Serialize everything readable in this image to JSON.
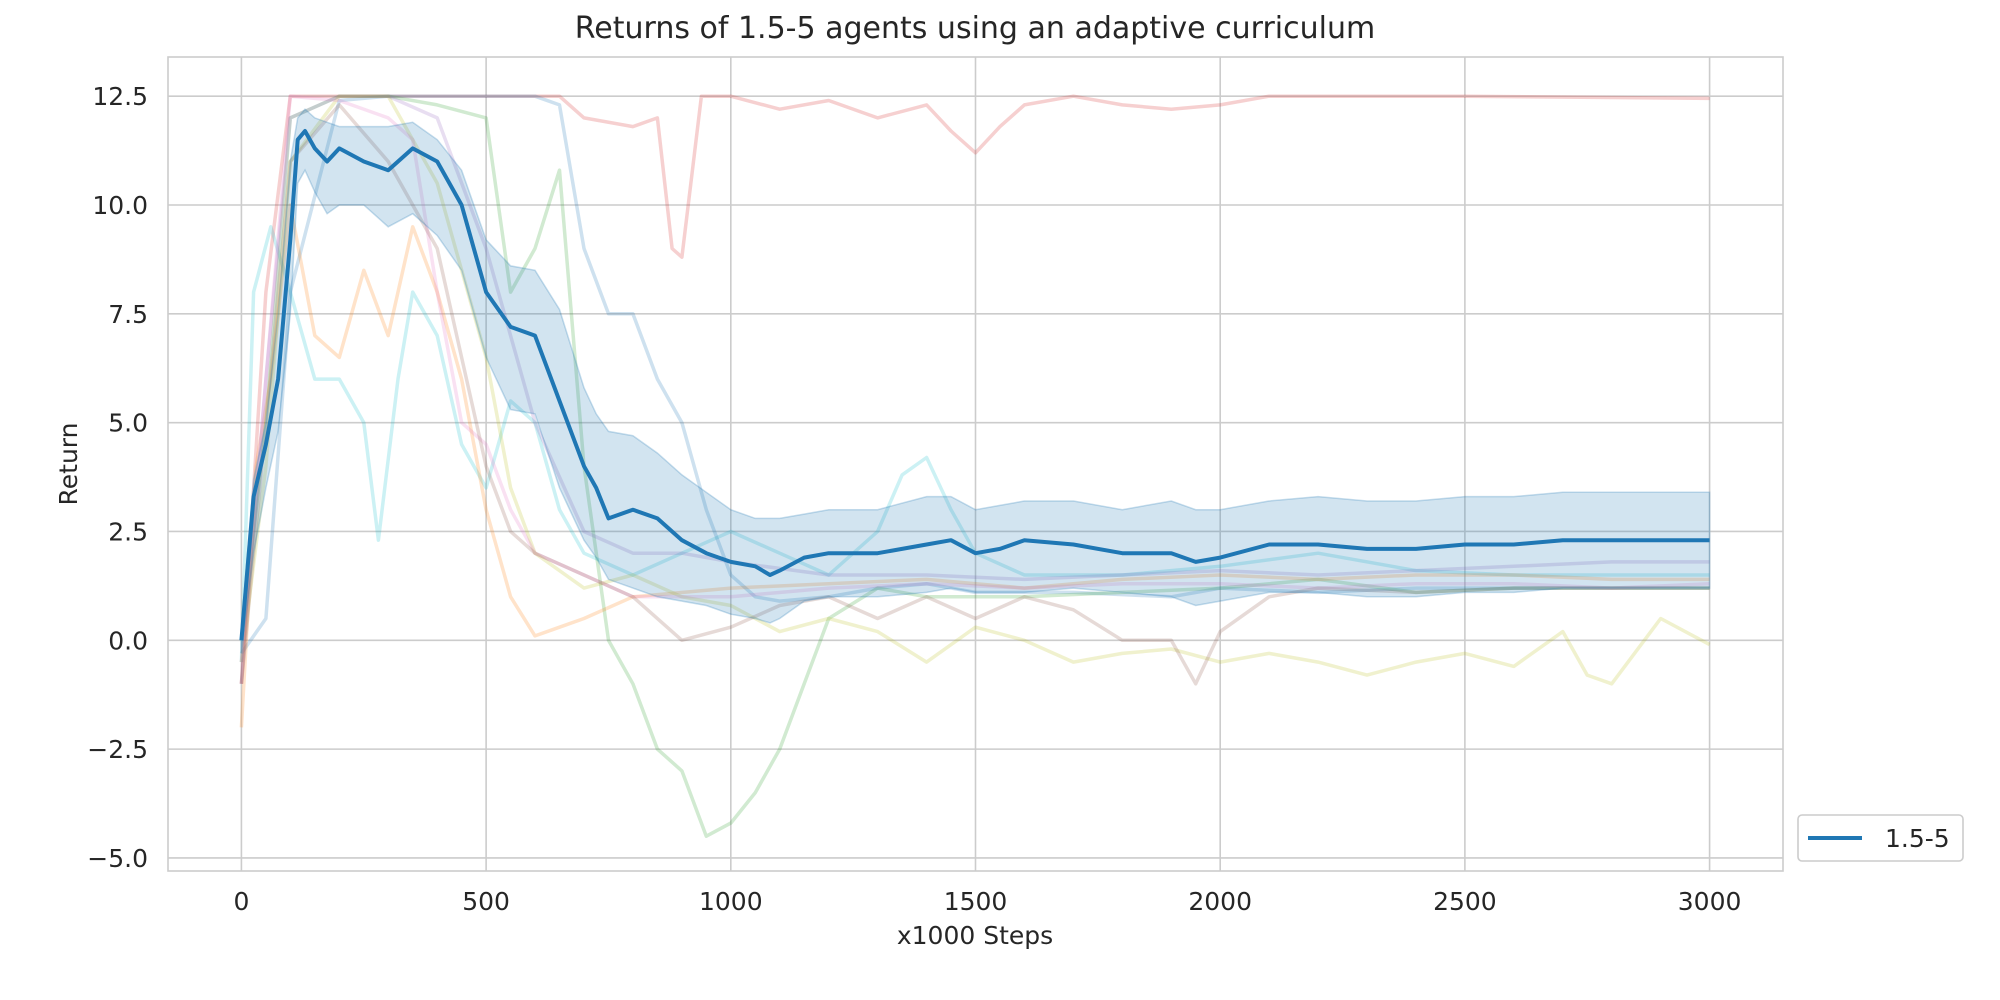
{
  "chart_data": {
    "type": "line",
    "title": "Returns of 1.5-5 agents using an adaptive curriculum",
    "xlabel": "x1000 Steps",
    "ylabel": "Return",
    "xlim": [
      -150,
      3150
    ],
    "ylim": [
      -5.3,
      13.4
    ],
    "xticks": [
      0,
      500,
      1000,
      1500,
      2000,
      2500,
      3000
    ],
    "xtick_labels": [
      "0",
      "500",
      "1000",
      "1500",
      "2000",
      "2500",
      "3000"
    ],
    "yticks": [
      -5.0,
      -2.5,
      0.0,
      2.5,
      5.0,
      7.5,
      10.0,
      12.5
    ],
    "ytick_labels": [
      "−5.0",
      "−2.5",
      "0.0",
      "2.5",
      "5.0",
      "7.5",
      "10.0",
      "12.5"
    ],
    "grid": true,
    "legend": {
      "placement": "outside-right-bottom",
      "entries": [
        "1.5-5"
      ]
    },
    "mean_color": "#1f77b4",
    "band_color": "#1f77b4",
    "series": [
      {
        "name": "1.5-5",
        "color": "#1f77b4",
        "x": [
          0,
          25,
          50,
          75,
          100,
          115,
          130,
          150,
          175,
          200,
          250,
          300,
          350,
          400,
          450,
          500,
          550,
          600,
          650,
          700,
          725,
          750,
          800,
          850,
          900,
          950,
          1000,
          1050,
          1080,
          1100,
          1150,
          1200,
          1300,
          1400,
          1450,
          1500,
          1550,
          1600,
          1700,
          1800,
          1900,
          1950,
          2000,
          2100,
          2200,
          2300,
          2400,
          2500,
          2600,
          2700,
          2800,
          2900,
          3000
        ],
        "y": [
          0.0,
          3.3,
          4.5,
          6.0,
          9.2,
          11.5,
          11.7,
          11.3,
          11.0,
          11.3,
          11.0,
          10.8,
          11.3,
          11.0,
          10.0,
          8.0,
          7.2,
          7.0,
          5.5,
          4.0,
          3.5,
          2.8,
          3.0,
          2.8,
          2.3,
          2.0,
          1.8,
          1.7,
          1.5,
          1.6,
          1.9,
          2.0,
          2.0,
          2.2,
          2.3,
          2.0,
          2.1,
          2.3,
          2.2,
          2.0,
          2.0,
          1.8,
          1.9,
          2.2,
          2.2,
          2.1,
          2.1,
          2.2,
          2.2,
          2.3,
          2.3,
          2.3,
          2.3
        ],
        "upper": [
          0.3,
          3.7,
          5.0,
          7.5,
          11.0,
          12.0,
          12.2,
          12.0,
          11.9,
          11.8,
          11.8,
          11.8,
          11.9,
          11.5,
          10.8,
          9.2,
          8.6,
          8.5,
          7.6,
          5.8,
          5.2,
          4.8,
          4.7,
          4.3,
          3.8,
          3.4,
          3.0,
          2.8,
          2.8,
          2.8,
          2.9,
          3.0,
          3.0,
          3.3,
          3.3,
          3.0,
          3.1,
          3.2,
          3.2,
          3.0,
          3.2,
          3.0,
          3.0,
          3.2,
          3.3,
          3.2,
          3.2,
          3.3,
          3.3,
          3.4,
          3.4,
          3.4,
          3.4
        ],
        "lower": [
          -0.3,
          2.0,
          3.5,
          4.8,
          7.5,
          10.5,
          10.8,
          10.3,
          9.8,
          10.0,
          10.0,
          9.5,
          9.8,
          9.3,
          8.5,
          6.5,
          5.3,
          5.2,
          3.5,
          2.3,
          1.9,
          1.4,
          1.2,
          1.0,
          0.9,
          0.8,
          0.6,
          0.5,
          0.4,
          0.5,
          0.9,
          1.0,
          1.0,
          1.1,
          1.2,
          1.1,
          1.1,
          1.1,
          1.2,
          1.1,
          1.0,
          0.8,
          0.9,
          1.1,
          1.1,
          1.0,
          1.0,
          1.1,
          1.1,
          1.2,
          1.2,
          1.2,
          1.2
        ]
      }
    ],
    "individual_runs": [
      {
        "color": "#d62728",
        "x": [
          0,
          50,
          100,
          300,
          600,
          650,
          700,
          800,
          850,
          880,
          900,
          940,
          1000,
          1100,
          1200,
          1300,
          1400,
          1450,
          1500,
          1550,
          1600,
          1700,
          1800,
          1900,
          2000,
          2100,
          2500,
          3000
        ],
        "y": [
          -1.0,
          8.0,
          12.5,
          12.5,
          12.5,
          12.5,
          12.0,
          11.8,
          12.0,
          9.0,
          8.8,
          12.5,
          12.5,
          12.2,
          12.4,
          12.0,
          12.3,
          11.7,
          11.2,
          11.8,
          12.3,
          12.5,
          12.3,
          12.2,
          12.3,
          12.5,
          12.5,
          12.45
        ]
      },
      {
        "color": "#1f77b4",
        "x": [
          0,
          50,
          100,
          200,
          300,
          400,
          500,
          600,
          650,
          700,
          750,
          800,
          850,
          900,
          950,
          1000,
          1050,
          1100,
          1200,
          1300,
          1400,
          1500,
          1700,
          1900,
          2000,
          2200,
          2400,
          2600,
          2800,
          3000
        ],
        "y": [
          -0.3,
          0.5,
          8.0,
          12.4,
          12.5,
          12.5,
          12.5,
          12.5,
          12.3,
          9.0,
          7.5,
          7.5,
          6.0,
          5.0,
          3.0,
          1.5,
          1.0,
          0.9,
          1.0,
          1.2,
          1.3,
          1.1,
          1.1,
          1.0,
          1.2,
          1.1,
          1.2,
          1.2,
          1.2,
          1.2
        ]
      },
      {
        "color": "#17becf",
        "x": [
          0,
          25,
          60,
          100,
          150,
          200,
          250,
          280,
          320,
          350,
          400,
          450,
          500,
          550,
          600,
          650,
          700,
          800,
          900,
          1000,
          1100,
          1200,
          1300,
          1350,
          1400,
          1450,
          1500,
          1600,
          1800,
          2000,
          2200,
          2400,
          2600,
          2800,
          3000
        ],
        "y": [
          -0.5,
          8.0,
          9.5,
          8.0,
          6.0,
          6.0,
          5.0,
          2.3,
          6.0,
          8.0,
          7.0,
          4.5,
          3.5,
          5.5,
          5.0,
          3.0,
          2.0,
          1.5,
          2.0,
          2.5,
          2.0,
          1.5,
          2.5,
          3.8,
          4.2,
          3.0,
          2.0,
          1.5,
          1.5,
          1.7,
          2.0,
          1.6,
          1.5,
          1.5,
          1.5
        ]
      },
      {
        "color": "#2ca02c",
        "x": [
          0,
          50,
          100,
          200,
          300,
          400,
          500,
          550,
          600,
          650,
          700,
          750,
          800,
          850,
          900,
          950,
          1000,
          1050,
          1100,
          1150,
          1200,
          1300,
          1400,
          1600,
          1800,
          2000,
          2200,
          2400,
          2600,
          2800,
          3000
        ],
        "y": [
          0.0,
          5.0,
          12.0,
          12.5,
          12.5,
          12.3,
          12.0,
          8.0,
          9.0,
          10.8,
          4.0,
          0.0,
          -1.0,
          -2.5,
          -3.0,
          -4.5,
          -4.2,
          -3.5,
          -2.5,
          -1.0,
          0.5,
          1.2,
          1.0,
          1.0,
          1.1,
          1.2,
          1.4,
          1.1,
          1.2,
          1.2,
          1.2
        ]
      },
      {
        "color": "#ff7f0e",
        "x": [
          0,
          30,
          60,
          100,
          150,
          200,
          250,
          300,
          350,
          400,
          450,
          500,
          550,
          600,
          650,
          700,
          800,
          1000,
          1200,
          1400,
          1600,
          1800,
          2000,
          2200,
          2400,
          2600,
          2800,
          3000
        ],
        "y": [
          -2.0,
          4.0,
          6.0,
          10.0,
          7.0,
          6.5,
          8.5,
          7.0,
          9.5,
          8.0,
          6.0,
          3.0,
          1.0,
          0.1,
          0.3,
          0.5,
          1.0,
          1.2,
          1.3,
          1.4,
          1.2,
          1.4,
          1.5,
          1.4,
          1.5,
          1.5,
          1.4,
          1.4
        ]
      },
      {
        "color": "#bcbd22",
        "x": [
          0,
          50,
          100,
          200,
          300,
          400,
          500,
          550,
          600,
          700,
          800,
          900,
          1000,
          1100,
          1200,
          1300,
          1400,
          1500,
          1600,
          1700,
          1800,
          1900,
          2000,
          2100,
          2200,
          2300,
          2400,
          2500,
          2600,
          2700,
          2750,
          2800,
          2900,
          3000
        ],
        "y": [
          -0.5,
          4.0,
          11.0,
          12.5,
          12.5,
          10.5,
          6.5,
          3.5,
          2.0,
          1.2,
          1.5,
          1.0,
          0.8,
          0.2,
          0.5,
          0.2,
          -0.5,
          0.3,
          0.0,
          -0.5,
          -0.3,
          -0.2,
          -0.5,
          -0.3,
          -0.5,
          -0.8,
          -0.5,
          -0.3,
          -0.6,
          0.2,
          -0.8,
          -1.0,
          0.5,
          -0.1
        ]
      },
      {
        "color": "#e377c2",
        "x": [
          0,
          50,
          100,
          200,
          300,
          350,
          400,
          450,
          500,
          550,
          600,
          700,
          800,
          1000,
          1200,
          1400,
          1600,
          1800,
          2000,
          2200,
          2400,
          2600,
          2800,
          3000
        ],
        "y": [
          -0.5,
          6.0,
          12.5,
          12.4,
          12.0,
          11.5,
          8.0,
          5.0,
          4.5,
          3.0,
          2.0,
          1.5,
          1.0,
          1.0,
          1.2,
          1.3,
          1.2,
          1.3,
          1.3,
          1.2,
          1.3,
          1.3,
          1.2,
          1.3
        ]
      },
      {
        "color": "#9467bd",
        "x": [
          0,
          50,
          100,
          200,
          300,
          400,
          500,
          600,
          700,
          800,
          900,
          1000,
          1200,
          1400,
          1600,
          1800,
          2000,
          2200,
          2400,
          2600,
          2800,
          3000
        ],
        "y": [
          -1.0,
          6.0,
          12.0,
          12.5,
          12.5,
          12.0,
          9.0,
          5.0,
          2.5,
          2.0,
          2.0,
          1.8,
          1.5,
          1.5,
          1.4,
          1.5,
          1.6,
          1.5,
          1.6,
          1.7,
          1.8,
          1.8
        ]
      },
      {
        "color": "#8c564b",
        "x": [
          0,
          50,
          100,
          200,
          300,
          400,
          450,
          500,
          550,
          600,
          700,
          800,
          900,
          1000,
          1100,
          1200,
          1300,
          1400,
          1500,
          1600,
          1700,
          1800,
          1900,
          1950,
          2000,
          2100,
          2200,
          2400,
          2600,
          2800,
          3000
        ],
        "y": [
          -1.0,
          5.0,
          11.0,
          12.3,
          11.0,
          9.0,
          6.5,
          4.0,
          2.5,
          2.0,
          1.5,
          1.0,
          0.0,
          0.3,
          0.8,
          1.0,
          0.5,
          1.0,
          0.5,
          1.0,
          0.7,
          0.0,
          0.0,
          -1.0,
          0.2,
          1.0,
          1.2,
          1.1,
          1.2,
          1.2,
          1.2
        ]
      }
    ]
  }
}
